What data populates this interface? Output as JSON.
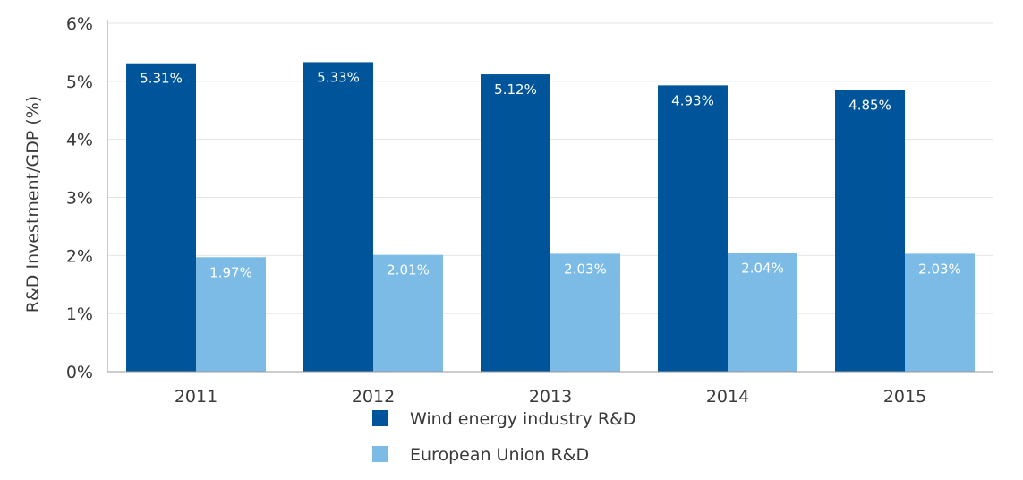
{
  "chart_data": {
    "type": "bar",
    "categories": [
      "2011",
      "2012",
      "2013",
      "2014",
      "2015"
    ],
    "series": [
      {
        "name": "Wind energy industry R&D",
        "color": "#00559a",
        "values": [
          5.31,
          5.33,
          5.12,
          4.93,
          4.85
        ],
        "labels": [
          "5.31%",
          "5.33%",
          "5.12%",
          "4.93%",
          "4.85%"
        ]
      },
      {
        "name": "European Union R&D",
        "color": "#7bbbe6",
        "values": [
          1.97,
          2.01,
          2.03,
          2.04,
          2.03
        ],
        "labels": [
          "1.97%",
          "2.01%",
          "2.03%",
          "2.04%",
          "2.03%"
        ]
      }
    ],
    "ylabel": "R&D Investment/GDP (%)",
    "xlabel": "",
    "ylim": [
      0,
      6
    ],
    "yticks": [
      "0%",
      "1%",
      "2%",
      "3%",
      "4%",
      "5%",
      "6%"
    ],
    "grid": true,
    "legend_position": "bottom-center"
  }
}
